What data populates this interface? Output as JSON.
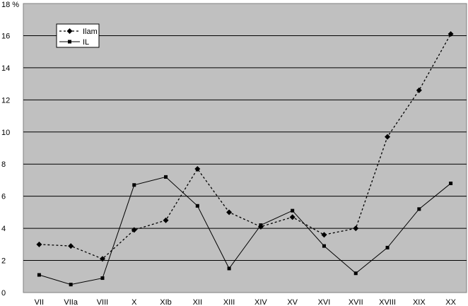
{
  "chart_data": {
    "type": "line",
    "title": "",
    "xlabel": "",
    "ylabel": "%",
    "ylim": [
      0,
      18
    ],
    "y_ticks": [
      "0",
      "2",
      "4",
      "6",
      "8",
      "10",
      "12",
      "14",
      "16",
      "18 %"
    ],
    "categories": [
      "VII",
      "VIIa",
      "VIII",
      "X",
      "XIb",
      "XII",
      "XIII",
      "XIV",
      "XV",
      "XVI",
      "XVII",
      "XVIII",
      "XIX",
      "XX"
    ],
    "grid": true,
    "legend_position": "top-left",
    "plot_background": "#c0c0c0",
    "series": [
      {
        "name": "Ilam",
        "style": "dashed",
        "marker": "diamond",
        "color": "#000000",
        "values": [
          3.0,
          2.9,
          2.1,
          3.9,
          4.5,
          7.7,
          5.0,
          4.1,
          4.7,
          3.6,
          4.0,
          9.7,
          12.6,
          16.1
        ]
      },
      {
        "name": "IL",
        "style": "solid",
        "marker": "square",
        "color": "#000000",
        "values": [
          1.1,
          0.5,
          0.9,
          6.7,
          7.2,
          5.4,
          1.5,
          4.2,
          5.1,
          2.9,
          1.2,
          2.8,
          5.2,
          6.8
        ]
      }
    ]
  }
}
